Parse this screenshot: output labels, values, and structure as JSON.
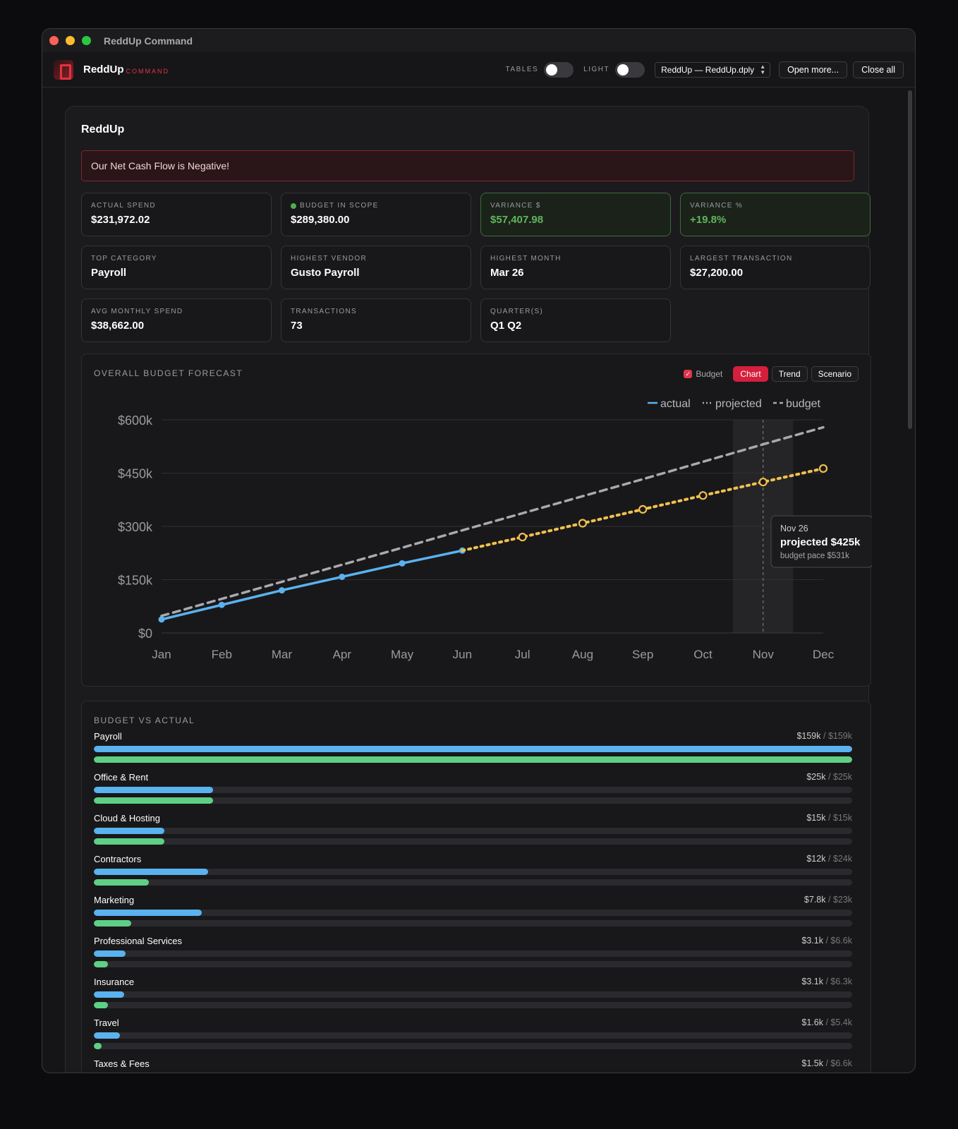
{
  "window": {
    "title": "ReddUp Command"
  },
  "toolbar": {
    "brand": "ReddUp",
    "brand_sub": "COMMAND",
    "tables_label": "TABLES",
    "light_label": "LIGHT",
    "file_select": "ReddUp — ReddUp.dply",
    "open_more": "Open more...",
    "close_all": "Close all"
  },
  "panel": {
    "title": "ReddUp",
    "alert": "Our Net Cash Flow is Negative!"
  },
  "cards": [
    {
      "label": "ACTUAL SPEND",
      "value": "$231,972.02"
    },
    {
      "label": "BUDGET IN SCOPE",
      "value": "$289,380.00"
    },
    {
      "label": "VARIANCE $",
      "value": "$57,407.98"
    },
    {
      "label": "VARIANCE %",
      "value": "+19.8%"
    },
    {
      "label": "TOP CATEGORY",
      "value": "Payroll"
    },
    {
      "label": "HIGHEST VENDOR",
      "value": "Gusto Payroll"
    },
    {
      "label": "HIGHEST MONTH",
      "value": "Mar 26"
    },
    {
      "label": "LARGEST TRANSACTION",
      "value": "$27,200.00"
    },
    {
      "label": "AVG MONTHLY SPEND",
      "value": "$38,662.00"
    },
    {
      "label": "TRANSACTIONS",
      "value": "73"
    },
    {
      "label": "QUARTER(S)",
      "value": "Q1 Q2"
    }
  ],
  "forecast": {
    "title": "OVERALL BUDGET FORECAST",
    "budget_toggle": "Budget",
    "tabs": [
      "Chart",
      "Trend",
      "Scenario"
    ],
    "active_tab": "Chart",
    "tooltip": {
      "date": "Nov 26",
      "main": "projected $425k",
      "sub": "budget pace $531k"
    }
  },
  "chart_data": {
    "type": "line",
    "x": [
      "Jan",
      "Feb",
      "Mar",
      "Apr",
      "May",
      "Jun",
      "Jul",
      "Aug",
      "Sep",
      "Oct",
      "Nov",
      "Dec"
    ],
    "ylim": [
      0,
      600000
    ],
    "yticks": [
      "$0",
      "$150k",
      "$300k",
      "$450k",
      "$600k"
    ],
    "ytick_values": [
      0,
      150000,
      300000,
      450000,
      600000
    ],
    "legend": [
      "actual",
      "projected",
      "budget"
    ],
    "legend_position": "top-right",
    "grid": true,
    "highlight_category": "Nov",
    "series": [
      {
        "name": "actual",
        "color": "#5ab2ef",
        "style": "solid",
        "values": [
          38000,
          79000,
          120000,
          158000,
          196000,
          231972,
          null,
          null,
          null,
          null,
          null,
          null
        ]
      },
      {
        "name": "projected",
        "color": "#f2c14e",
        "style": "dotted",
        "values": [
          null,
          null,
          null,
          null,
          null,
          231972,
          270000,
          309000,
          348000,
          387000,
          425000,
          463000
        ]
      },
      {
        "name": "budget",
        "color": "#a9a9ae",
        "style": "dashed",
        "values": [
          48000,
          96000,
          144000,
          192000,
          240000,
          289000,
          337000,
          385000,
          433000,
          482000,
          531000,
          579000
        ]
      }
    ]
  },
  "budget_vs_actual": {
    "title": "BUDGET VS ACTUAL",
    "separator": " / ",
    "rows": [
      {
        "name": "Payroll",
        "actual": "$159k",
        "budget": "$159k",
        "actual_frac": 1.0,
        "green_frac": 1.0
      },
      {
        "name": "Office & Rent",
        "actual": "$25k",
        "budget": "$25k",
        "actual_frac": 0.157,
        "green_frac": 0.157
      },
      {
        "name": "Cloud & Hosting",
        "actual": "$15k",
        "budget": "$15k",
        "actual_frac": 0.093,
        "green_frac": 0.093
      },
      {
        "name": "Contractors",
        "actual": "$12k",
        "budget": "$24k",
        "actual_frac": 0.151,
        "green_frac": 0.073
      },
      {
        "name": "Marketing",
        "actual": "$7.8k",
        "budget": "$23k",
        "actual_frac": 0.142,
        "green_frac": 0.049
      },
      {
        "name": "Professional Services",
        "actual": "$3.1k",
        "budget": "$6.6k",
        "actual_frac": 0.042,
        "green_frac": 0.019
      },
      {
        "name": "Insurance",
        "actual": "$3.1k",
        "budget": "$6.3k",
        "actual_frac": 0.04,
        "green_frac": 0.019
      },
      {
        "name": "Travel",
        "actual": "$1.6k",
        "budget": "$5.4k",
        "actual_frac": 0.034,
        "green_frac": 0.01
      },
      {
        "name": "Taxes & Fees",
        "actual": "$1.5k",
        "budget": "$6.6k",
        "actual_frac": 0.042,
        "green_frac": 0.01
      }
    ]
  }
}
